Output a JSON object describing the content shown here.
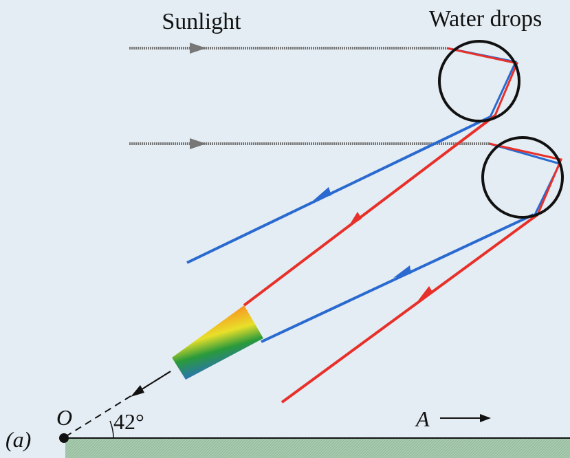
{
  "labels": {
    "sunlight": "Sunlight",
    "water_drops": "Water drops",
    "origin": "O",
    "angle": "42°",
    "direction": "A",
    "panel": "(a)"
  }
}
